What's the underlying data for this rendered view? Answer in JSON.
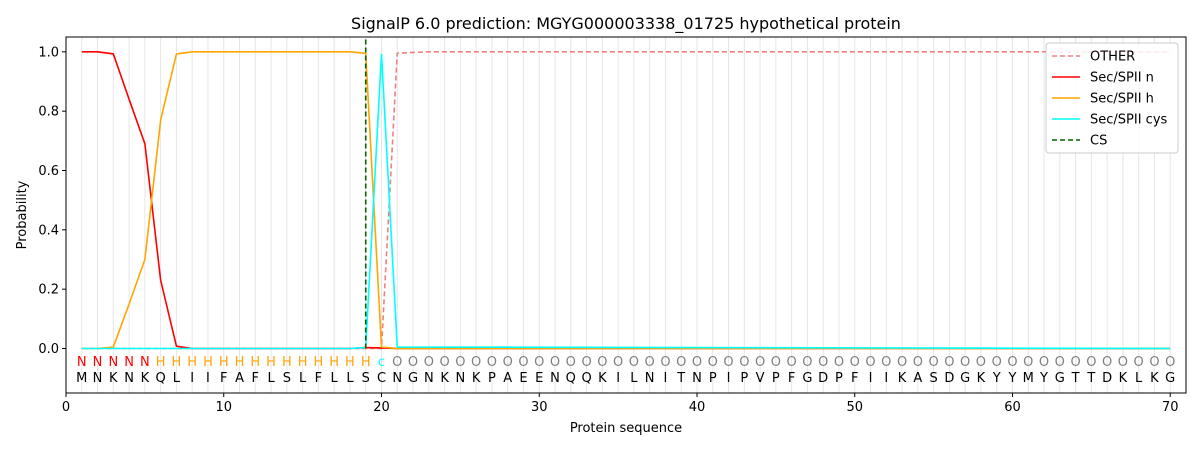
{
  "chart_data": {
    "type": "line",
    "title": "SignalP 6.0 prediction: MGYG000003338_01725 hypothetical protein",
    "xlabel": "Protein sequence",
    "ylabel": "Probability",
    "xlim": [
      0,
      71
    ],
    "ylim": [
      -0.15,
      1.05
    ],
    "xticks": [
      "0",
      "10",
      "20",
      "30",
      "40",
      "50",
      "60",
      "70"
    ],
    "xtick_values": [
      0,
      10,
      20,
      30,
      40,
      50,
      60,
      70
    ],
    "yticks": [
      "0.0",
      "0.2",
      "0.4",
      "0.6",
      "0.8",
      "1.0"
    ],
    "ytick_values": [
      0.0,
      0.2,
      0.4,
      0.6,
      0.8,
      1.0
    ],
    "grid": "vertical lines at each residue",
    "legend_position": "top-right",
    "sequence": [
      "M",
      "N",
      "K",
      "N",
      "K",
      "Q",
      "L",
      "I",
      "I",
      "F",
      "A",
      "F",
      "L",
      "S",
      "L",
      "F",
      "L",
      "L",
      "S",
      "C",
      "N",
      "G",
      "N",
      "K",
      "N",
      "K",
      "P",
      "A",
      "E",
      "E",
      "N",
      "Q",
      "Q",
      "K",
      "I",
      "L",
      "N",
      "I",
      "T",
      "N",
      "P",
      "I",
      "P",
      "V",
      "P",
      "F",
      "G",
      "D",
      "P",
      "F",
      "I",
      "I",
      "K",
      "A",
      "S",
      "D",
      "G",
      "K",
      "Y",
      "Y",
      "M",
      "Y",
      "G",
      "T",
      "T",
      "D",
      "K",
      "L",
      "K",
      "G"
    ],
    "region_labels": [
      "N",
      "N",
      "N",
      "N",
      "N",
      "H",
      "H",
      "H",
      "H",
      "H",
      "H",
      "H",
      "H",
      "H",
      "H",
      "H",
      "H",
      "H",
      "H",
      "c",
      "O",
      "O",
      "O",
      "O",
      "O",
      "O",
      "O",
      "O",
      "O",
      "O",
      "O",
      "O",
      "O",
      "O",
      "O",
      "O",
      "O",
      "O",
      "O",
      "O",
      "O",
      "O",
      "O",
      "O",
      "O",
      "O",
      "O",
      "O",
      "O",
      "O",
      "O",
      "O",
      "O",
      "O",
      "O",
      "O",
      "O",
      "O",
      "O",
      "O",
      "O",
      "O",
      "O",
      "O",
      "O",
      "O",
      "O",
      "O",
      "O",
      "O"
    ],
    "region_colors": {
      "N": "#ff0000",
      "H": "#ffa500",
      "c": "#00ffff",
      "O": "#808080"
    },
    "cleavage_site": 19,
    "series": [
      {
        "name": "OTHER",
        "color": "#f08080",
        "dash": "dashed",
        "x": [
          1,
          2,
          3,
          4,
          5,
          6,
          7,
          8,
          9,
          10,
          11,
          12,
          13,
          14,
          15,
          16,
          17,
          18,
          19,
          20,
          21,
          22,
          23,
          70
        ],
        "y": [
          0,
          0,
          0,
          0,
          0,
          0,
          0,
          0,
          0,
          0,
          0,
          0,
          0,
          0,
          0,
          0,
          0,
          0,
          0,
          0.0,
          0.995,
          0.998,
          1.0,
          1.0
        ]
      },
      {
        "name": "Sec/SPII n",
        "color": "#ff0000",
        "dash": "solid",
        "x": [
          1,
          2,
          3,
          4,
          5,
          6,
          7,
          8,
          9,
          10,
          11,
          12,
          13,
          14,
          15,
          16,
          17,
          18,
          19,
          20,
          21,
          70
        ],
        "y": [
          1.0,
          1.0,
          0.993,
          0.84,
          0.69,
          0.23,
          0.008,
          0,
          0,
          0,
          0,
          0,
          0,
          0,
          0,
          0,
          0,
          0,
          0.003,
          0.002,
          0,
          0
        ]
      },
      {
        "name": "Sec/SPII h",
        "color": "#ffa500",
        "dash": "solid",
        "x": [
          1,
          2,
          3,
          4,
          5,
          6,
          7,
          8,
          9,
          10,
          11,
          12,
          13,
          14,
          15,
          16,
          17,
          18,
          19,
          20,
          21,
          70
        ],
        "y": [
          0,
          0,
          0.005,
          0.15,
          0.3,
          0.77,
          0.993,
          1.0,
          1.0,
          1.0,
          1.0,
          1.0,
          1.0,
          1.0,
          1.0,
          1.0,
          1.0,
          1.0,
          0.995,
          0.005,
          0,
          0
        ]
      },
      {
        "name": "Sec/SPII cys",
        "color": "#00ffff",
        "dash": "solid",
        "x": [
          1,
          18,
          19,
          20,
          21,
          70
        ],
        "y": [
          0,
          0,
          0.003,
          0.993,
          0.005,
          0
        ]
      },
      {
        "name": "CS",
        "color": "#006400",
        "dash": "dashed",
        "x": [
          19,
          19
        ],
        "y": [
          0,
          1.05
        ]
      }
    ]
  }
}
